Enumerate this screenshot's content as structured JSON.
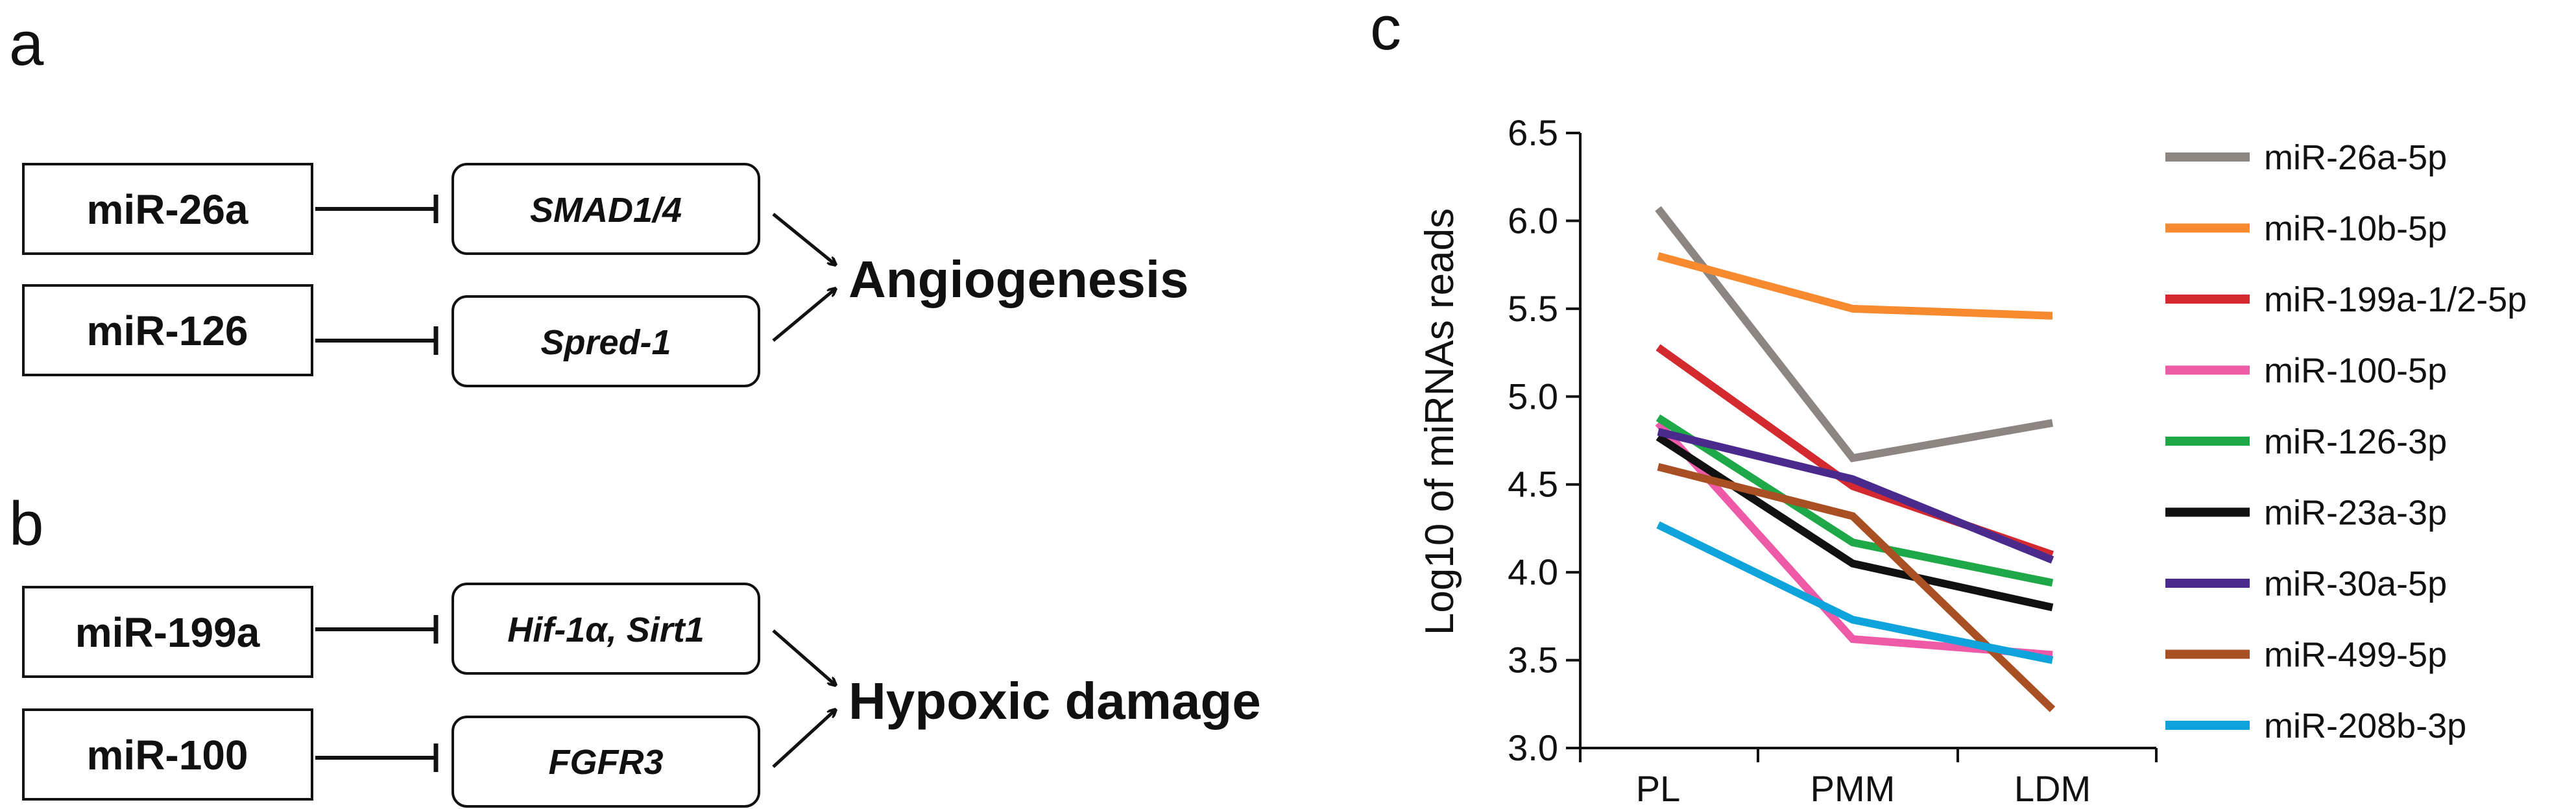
{
  "panels": {
    "a": {
      "letter": "a",
      "rows": [
        {
          "mirna": "miR-26a",
          "target": "SMAD1/4"
        },
        {
          "mirna": "miR-126",
          "target": "Spred-1"
        }
      ],
      "outcome": "Angiogenesis"
    },
    "b": {
      "letter": "b",
      "rows": [
        {
          "mirna": "miR-199a",
          "target": "Hif-1α, Sirt1"
        },
        {
          "mirna": "miR-100",
          "target": "FGFR3"
        }
      ],
      "outcome": "Hypoxic damage"
    },
    "c": {
      "letter": "c"
    }
  },
  "chart_data": {
    "type": "line",
    "title": "",
    "xlabel": "",
    "ylabel": "Log10 of miRNAs reads",
    "categories": [
      "PL",
      "PMM",
      "LDM"
    ],
    "ylim": [
      3.0,
      6.5
    ],
    "yticks": [
      "3.0",
      "3.5",
      "4.0",
      "4.5",
      "5.0",
      "5.5",
      "6.0",
      "6.5"
    ],
    "grid": false,
    "legend_position": "right",
    "series": [
      {
        "name": "miR-26a-5p",
        "color": "#8c8582",
        "values": [
          6.07,
          4.65,
          4.85
        ]
      },
      {
        "name": "miR-10b-5p",
        "color": "#f7892f",
        "values": [
          5.8,
          5.5,
          5.46
        ]
      },
      {
        "name": "miR-199a-1/2-5p",
        "color": "#d42a2f",
        "values": [
          5.28,
          4.49,
          4.1
        ]
      },
      {
        "name": "miR-100-5p",
        "color": "#ee5aa8",
        "values": [
          4.85,
          3.62,
          3.53
        ]
      },
      {
        "name": "miR-126-3p",
        "color": "#1fa847",
        "values": [
          4.88,
          4.17,
          3.94
        ]
      },
      {
        "name": "miR-23a-3p",
        "color": "#111111",
        "values": [
          4.77,
          4.05,
          3.8
        ]
      },
      {
        "name": "miR-30a-5p",
        "color": "#4b2a8e",
        "values": [
          4.8,
          4.53,
          4.07
        ]
      },
      {
        "name": "miR-499-5p",
        "color": "#a84f23",
        "values": [
          4.6,
          4.32,
          3.22
        ]
      },
      {
        "name": "miR-208b-3p",
        "color": "#0fa3dc",
        "values": [
          4.27,
          3.73,
          3.5
        ]
      }
    ]
  }
}
